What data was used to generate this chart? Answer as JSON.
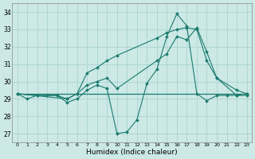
{
  "xlabel": "Humidex (Indice chaleur)",
  "bg_color": "#cce9e6",
  "grid_color": "#aad4d0",
  "line_color": "#1a7a6e",
  "xlim": [
    -0.5,
    23.5
  ],
  "ylim": [
    26.5,
    34.5
  ],
  "yticks": [
    27,
    28,
    29,
    30,
    31,
    32,
    33,
    34
  ],
  "xticks": [
    0,
    1,
    2,
    3,
    4,
    5,
    6,
    7,
    8,
    9,
    10,
    11,
    12,
    13,
    14,
    15,
    16,
    17,
    18,
    19,
    20,
    21,
    22,
    23
  ],
  "series": [
    {
      "x": [
        0,
        1,
        2,
        3,
        4,
        5,
        6,
        7,
        8,
        9,
        10,
        11,
        12,
        13,
        14,
        15,
        16,
        17,
        18,
        19,
        20,
        21,
        22,
        23
      ],
      "y": [
        29.3,
        29.3,
        29.3,
        29.3,
        29.3,
        29.3,
        29.3,
        29.3,
        29.3,
        29.3,
        29.3,
        29.3,
        29.3,
        29.3,
        29.3,
        29.3,
        29.3,
        29.3,
        29.3,
        29.3,
        29.3,
        29.3,
        29.3,
        29.3
      ],
      "marker": false
    },
    {
      "x": [
        0,
        1,
        2,
        3,
        4,
        5,
        6,
        7,
        8,
        9,
        10,
        11,
        12,
        13,
        14,
        15,
        16,
        17,
        18,
        19,
        20,
        21,
        22,
        23
      ],
      "y": [
        29.3,
        29.0,
        29.2,
        29.2,
        29.2,
        28.8,
        29.0,
        29.5,
        29.8,
        29.6,
        27.0,
        27.1,
        27.8,
        29.9,
        30.7,
        32.6,
        33.9,
        33.2,
        29.3,
        28.9,
        29.2,
        29.2,
        29.2,
        29.2
      ],
      "marker": true
    },
    {
      "x": [
        0,
        2,
        4,
        5,
        6,
        7,
        8,
        9,
        10,
        14,
        15,
        16,
        17,
        18,
        19,
        20,
        22,
        23
      ],
      "y": [
        29.3,
        29.2,
        29.2,
        29.0,
        29.3,
        29.8,
        30.0,
        30.2,
        29.6,
        31.2,
        31.6,
        32.6,
        32.4,
        33.1,
        31.7,
        30.2,
        29.5,
        29.3
      ],
      "marker": true
    },
    {
      "x": [
        0,
        5,
        6,
        7,
        8,
        9,
        10,
        14,
        15,
        16,
        17,
        18,
        19,
        20,
        22,
        23
      ],
      "y": [
        29.3,
        29.0,
        29.3,
        30.5,
        30.8,
        31.2,
        31.5,
        32.5,
        32.8,
        33.0,
        33.1,
        33.0,
        31.2,
        30.2,
        29.2,
        29.3
      ],
      "marker": true
    }
  ]
}
